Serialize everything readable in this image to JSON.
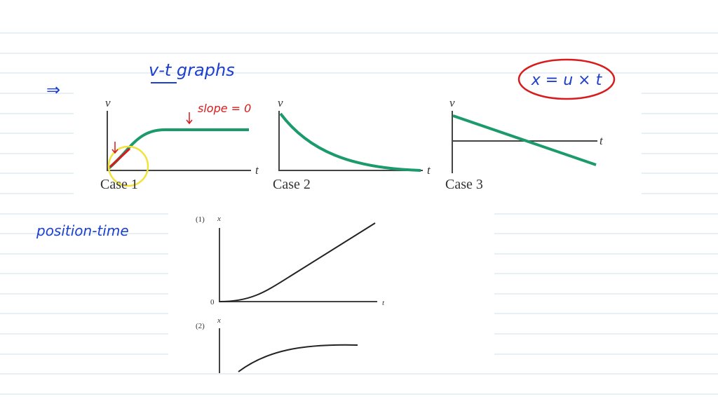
{
  "arrow": "⇒",
  "heading": "v-t graphs",
  "annotations": {
    "slope": "slope = 0",
    "formula": "x = u × t"
  },
  "vt_graphs": [
    {
      "y_axis": "v",
      "x_axis": "t",
      "caption": "Case 1"
    },
    {
      "y_axis": "v",
      "x_axis": "t",
      "caption": "Case 2"
    },
    {
      "y_axis": "v",
      "x_axis": "t",
      "caption": "Case 3"
    }
  ],
  "side_label": "position-time",
  "xt_graphs": [
    {
      "number": "(1)",
      "y_axis": "x",
      "origin": "0",
      "x_axis": "t"
    },
    {
      "number": "(2)",
      "y_axis": "x"
    }
  ]
}
